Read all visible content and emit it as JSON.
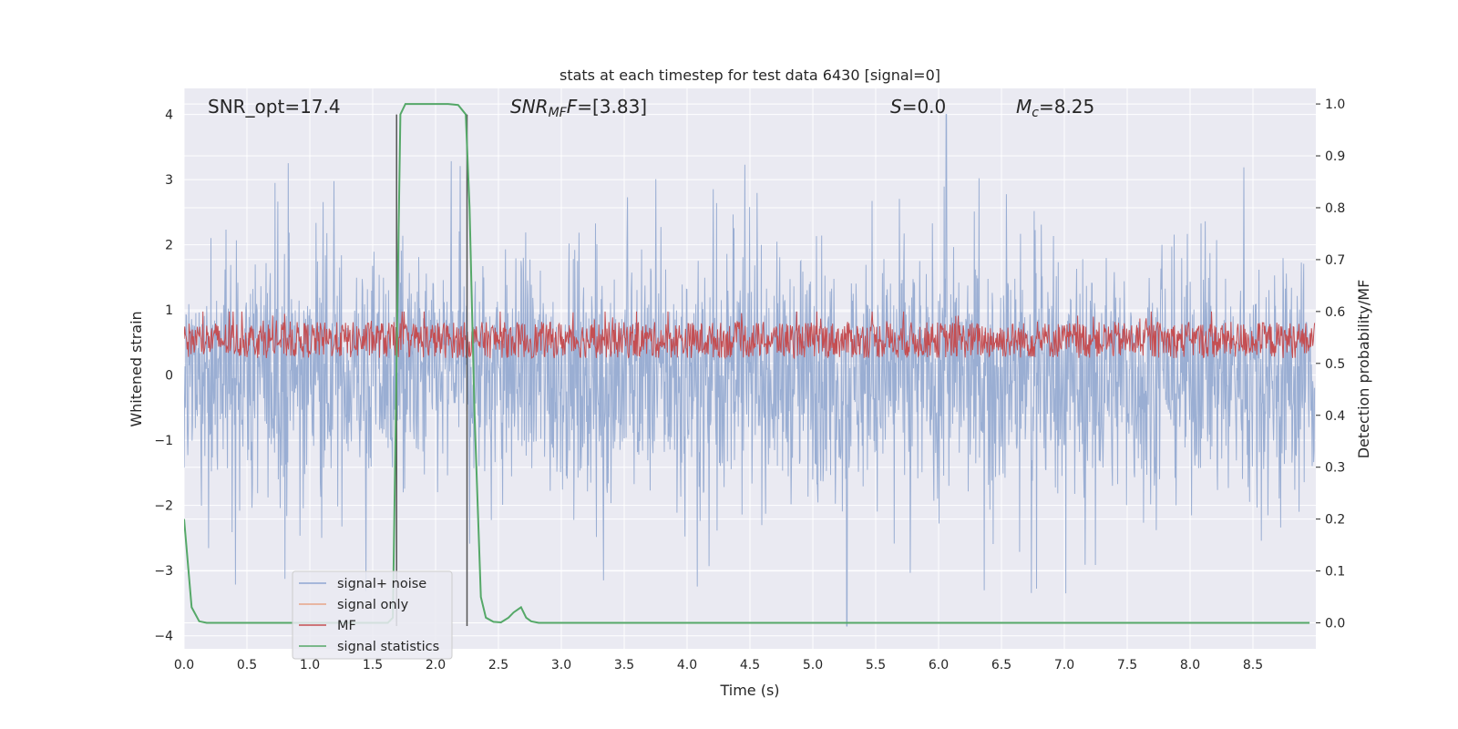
{
  "chart_data": {
    "type": "line",
    "title": "stats at each timestep for test data 6430 [signal=0]",
    "xlabel": "Time (s)",
    "ylabel_left": "Whitened strain",
    "ylabel_right": "Detection probability/MF",
    "xlim": [
      0.0,
      9.0
    ],
    "ylim_left": [
      -4.2,
      4.4
    ],
    "ylim_right": [
      -0.05,
      1.03
    ],
    "x_ticks": [
      "0.0",
      "0.5",
      "1.0",
      "1.5",
      "2.0",
      "2.5",
      "3.0",
      "3.5",
      "4.0",
      "4.5",
      "5.0",
      "5.5",
      "6.0",
      "6.5",
      "7.0",
      "7.5",
      "8.0",
      "8.5"
    ],
    "y_ticks_left": [
      "−4",
      "−3",
      "−2",
      "−1",
      "0",
      "1",
      "2",
      "3",
      "4"
    ],
    "y_ticks_right": [
      "0.0",
      "0.1",
      "0.2",
      "0.3",
      "0.4",
      "0.5",
      "0.6",
      "0.7",
      "0.8",
      "0.9",
      "1.0"
    ],
    "grid": true,
    "legend_position": "lower-left",
    "annotations": {
      "snr_opt": "SNR_opt=17.4",
      "snr_mf_main": "SNR",
      "snr_mf_sub": "MF",
      "snr_mf_value": "=[3.83]",
      "s_var": "S",
      "s_value": "=0.0",
      "mc_var": "M",
      "mc_sub": "c",
      "mc_value": "=8.25"
    },
    "vertical_lines_x": [
      1.69,
      2.25
    ],
    "series": [
      {
        "name": "signal+ noise",
        "color": "#8fa6d1",
        "axis": "left",
        "description_values": {
          "envelope_upper": 3.2,
          "envelope_lower": -3.5,
          "peak_max": 4.0,
          "peak_min": -3.85
        }
      },
      {
        "name": "signal only",
        "color": "#e8a487",
        "axis": "left"
      },
      {
        "name": "MF",
        "color": "#c44e52",
        "axis": "right",
        "description_values": {
          "baseline": 0.5,
          "range": [
            0.5,
            0.6
          ]
        }
      },
      {
        "name": "signal statistics",
        "color": "#55a868",
        "axis": "right",
        "x": [
          0.0,
          0.06,
          0.12,
          0.18,
          0.3,
          1.62,
          1.66,
          1.69,
          1.72,
          1.76,
          1.82,
          1.9,
          2.1,
          2.18,
          2.24,
          2.27,
          2.31,
          2.36,
          2.4,
          2.46,
          2.52,
          2.58,
          2.62,
          2.68,
          2.72,
          2.76,
          2.82,
          8.95
        ],
        "y": [
          0.2,
          0.03,
          0.003,
          0.0,
          0.0,
          0.0,
          0.01,
          0.5,
          0.98,
          1.0,
          1.0,
          1.0,
          1.0,
          0.998,
          0.98,
          0.8,
          0.4,
          0.05,
          0.01,
          0.002,
          0.001,
          0.01,
          0.02,
          0.03,
          0.01,
          0.003,
          0.0,
          0.0
        ]
      }
    ]
  }
}
